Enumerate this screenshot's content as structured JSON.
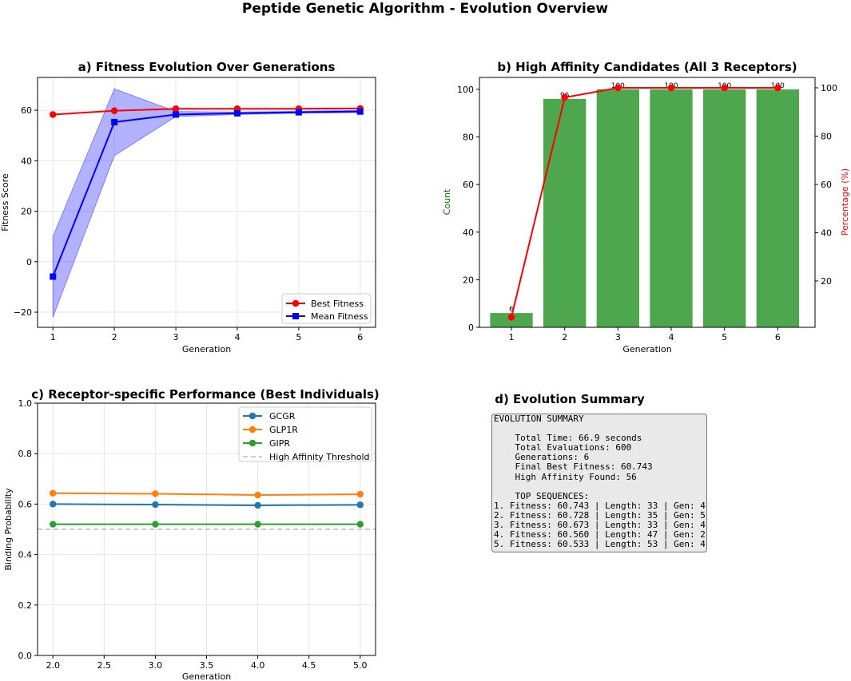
{
  "figure": {
    "title": "Peptide Genetic Algorithm - Evolution Overview"
  },
  "chart_data": [
    {
      "id": "a",
      "type": "line",
      "title": "a) Fitness Evolution Over Generations",
      "xlabel": "Generation",
      "ylabel": "Fitness Score",
      "x": [
        1,
        2,
        3,
        4,
        5,
        6
      ],
      "xlim": [
        0.75,
        6.25
      ],
      "ylim": [
        -26,
        73
      ],
      "xticks": [
        1,
        2,
        3,
        4,
        5,
        6
      ],
      "yticks": [
        -20,
        0,
        20,
        40,
        60
      ],
      "ytick_labels": [
        "−20",
        "0",
        "20",
        "40",
        "60"
      ],
      "grid": true,
      "legend_position": "lower-right",
      "series": [
        {
          "name": "Best Fitness",
          "color": "#ff0000",
          "marker": "circle",
          "values": [
            58.3,
            59.8,
            60.6,
            60.6,
            60.6,
            60.7
          ]
        },
        {
          "name": "Mean Fitness",
          "color": "#0000ff",
          "marker": "square",
          "values": [
            -5.9,
            55.3,
            58.3,
            58.8,
            59.2,
            59.5
          ]
        }
      ],
      "band": {
        "color": "#0000ff",
        "opacity": 0.3,
        "lower": [
          -22,
          42,
          57.5,
          58.3,
          58.8,
          59.1
        ],
        "upper": [
          10,
          68.5,
          59.5,
          59.3,
          59.6,
          59.9
        ]
      }
    },
    {
      "id": "b",
      "type": "bar",
      "title": "b) High Affinity Candidates (All 3 Receptors)",
      "xlabel": "Generation",
      "ylabel": "Count",
      "ylabel_right": "Percentage (%)",
      "ylabel_color": "#008000",
      "ylabel_right_color": "#ff0000",
      "categories": [
        1,
        2,
        3,
        4,
        5,
        6
      ],
      "values": [
        6,
        96,
        100,
        100,
        100,
        100
      ],
      "bar_labels": [
        "6",
        "96",
        "100",
        "100",
        "100",
        "100"
      ],
      "bar_color": "#4ea64e",
      "ylim": [
        0,
        105
      ],
      "yticks": [
        0,
        20,
        40,
        60,
        80,
        100
      ],
      "xlim": [
        0.4,
        6.7
      ],
      "right_series": {
        "name": "Percentage (%)",
        "color": "#ff0000",
        "values": [
          5,
          96,
          100,
          100,
          100,
          100
        ]
      },
      "right_ylim": [
        0.8,
        104.3
      ],
      "right_yticks": [
        20,
        40,
        60,
        80,
        100
      ]
    },
    {
      "id": "c",
      "type": "line",
      "title": "c) Receptor-specific Performance (Best Individuals)",
      "xlabel": "Generation",
      "ylabel": "Binding Probability",
      "x": [
        2,
        3,
        4,
        5
      ],
      "xlim": [
        1.85,
        5.15
      ],
      "ylim": [
        0,
        1
      ],
      "xticks": [
        2.0,
        2.5,
        3.0,
        3.5,
        4.0,
        4.5,
        5.0
      ],
      "xtick_labels": [
        "2.0",
        "2.5",
        "3.0",
        "3.5",
        "4.0",
        "4.5",
        "5.0"
      ],
      "yticks": [
        0,
        0.2,
        0.4,
        0.6,
        0.8,
        1.0
      ],
      "ytick_labels": [
        "0.0",
        "0.2",
        "0.4",
        "0.6",
        "0.8",
        "1.0"
      ],
      "grid": true,
      "legend_position": "top-right",
      "series": [
        {
          "name": "GCGR",
          "color": "#1f77b4",
          "values": [
            0.6,
            0.598,
            0.595,
            0.597
          ]
        },
        {
          "name": "GLP1R",
          "color": "#ff7f0e",
          "values": [
            0.643,
            0.641,
            0.636,
            0.639
          ]
        },
        {
          "name": "GIPR",
          "color": "#2ca02c",
          "values": [
            0.52,
            0.52,
            0.52,
            0.52
          ]
        }
      ],
      "threshold": {
        "name": "High Affinity Threshold",
        "value": 0.5,
        "color": "#bbbbbb"
      }
    }
  ],
  "summary": {
    "title": "d) Evolution Summary",
    "text": "EVOLUTION SUMMARY\n\n    Total Time: 66.9 seconds\n    Total Evaluations: 600\n    Generations: 6\n    Final Best Fitness: 60.743\n    High Affinity Found: 56\n\n    TOP SEQUENCES:\n1. Fitness: 60.743 | Length: 33 | Gen: 4\n2. Fitness: 60.728 | Length: 35 | Gen: 5\n3. Fitness: 60.673 | Length: 33 | Gen: 4\n4. Fitness: 60.560 | Length: 47 | Gen: 2\n5. Fitness: 60.533 | Length: 53 | Gen: 4"
  }
}
